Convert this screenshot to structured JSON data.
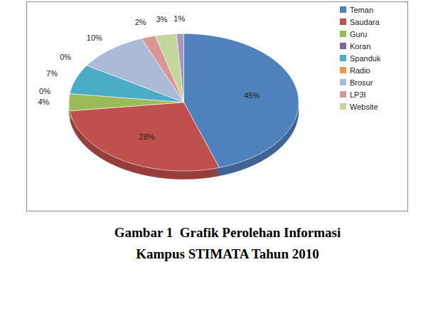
{
  "chart_data": {
    "type": "pie",
    "title": "Gambar 1  Grafik Perolehan Informasi Kampus STIMATA Tahun 2010",
    "categories": [
      "Teman",
      "Saudara",
      "Guru",
      "Koran",
      "Spanduk",
      "Radio",
      "Brosur",
      "LP3I",
      "Website",
      null
    ],
    "values": [
      45,
      28,
      4,
      0,
      7,
      0,
      10,
      2,
      3,
      1
    ],
    "value_labels": [
      "45%",
      "28%",
      "4%",
      "0%",
      "7%",
      "0%",
      "10%",
      "2%",
      "3%",
      "1%"
    ],
    "colors": [
      "#4f81bd",
      "#c0504d",
      "#9bbb59",
      "#8064a2",
      "#4bacc6",
      "#f79646",
      "#aabad7",
      "#d99694",
      "#c3d69b",
      "#a599bd"
    ],
    "data_labels": true,
    "legend": "right"
  }
}
